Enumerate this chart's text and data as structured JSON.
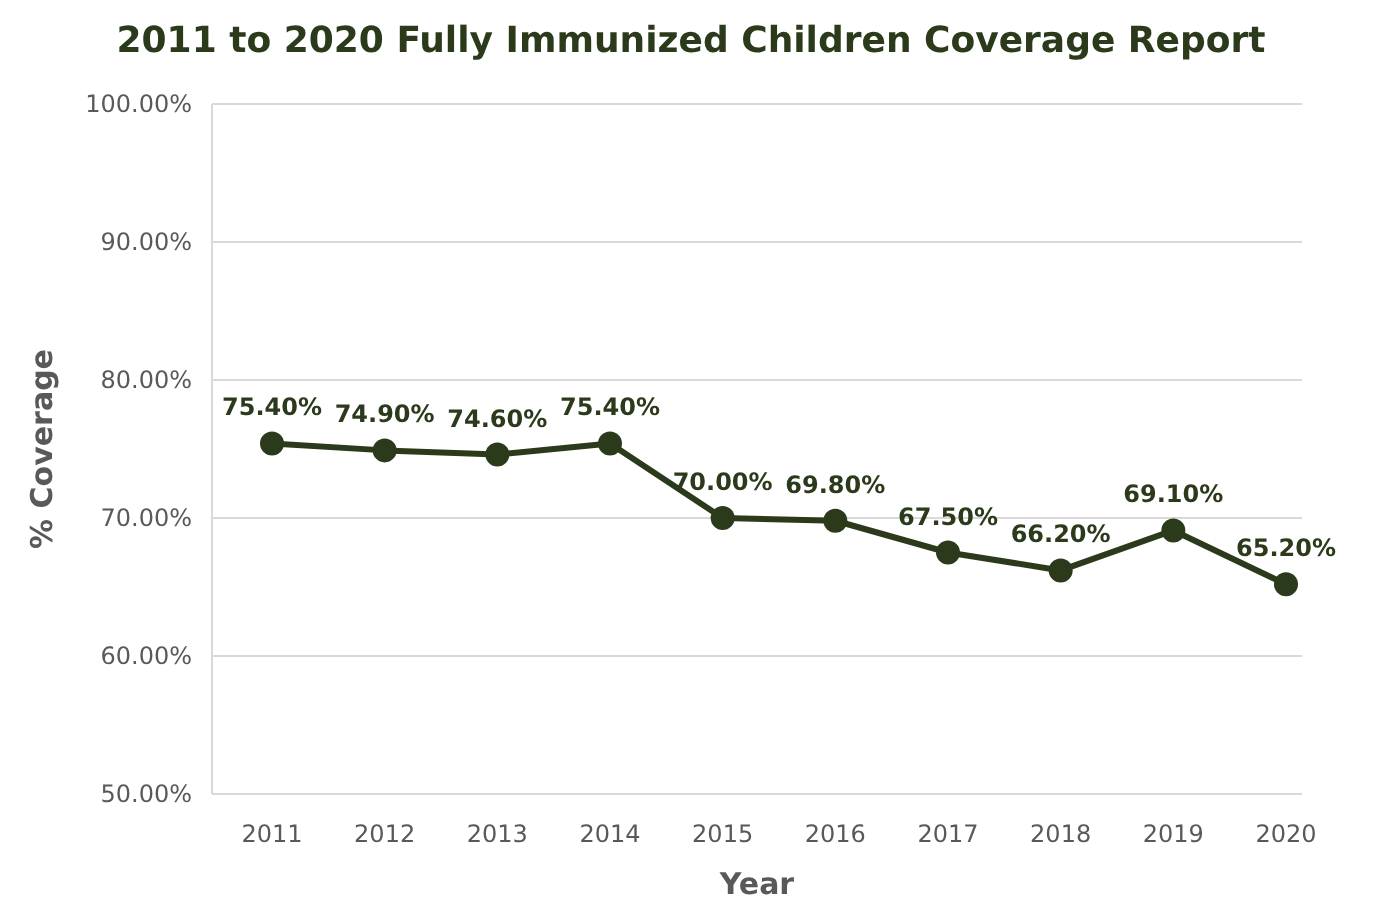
{
  "chart_data": {
    "type": "line",
    "title": "2011 to 2020 Fully Immunized Children Coverage Report",
    "xlabel": "Year",
    "ylabel": "% Coverage",
    "categories": [
      "2011",
      "2012",
      "2013",
      "2014",
      "2015",
      "2016",
      "2017",
      "2018",
      "2019",
      "2020"
    ],
    "series": [
      {
        "color": "#2c3a1c",
        "values": [
          75.4,
          74.9,
          74.6,
          75.4,
          70.0,
          69.8,
          67.5,
          66.2,
          69.1,
          65.2
        ],
        "value_labels": [
          "75.40%",
          "74.90%",
          "74.60%",
          "75.40%",
          "70.00%",
          "69.80%",
          "67.50%",
          "66.20%",
          "69.10%",
          "65.20%"
        ]
      }
    ],
    "ylim": [
      50,
      100
    ],
    "yticks": [
      {
        "value": 50,
        "label": "50.00%"
      },
      {
        "value": 60,
        "label": "60.00%"
      },
      {
        "value": 70,
        "label": "70.00%"
      },
      {
        "value": 80,
        "label": "80.00%"
      },
      {
        "value": 90,
        "label": "90.00%"
      },
      {
        "value": 100,
        "label": "100.00%"
      }
    ],
    "grid": "y",
    "marker": "circle",
    "line_style": "solid"
  }
}
